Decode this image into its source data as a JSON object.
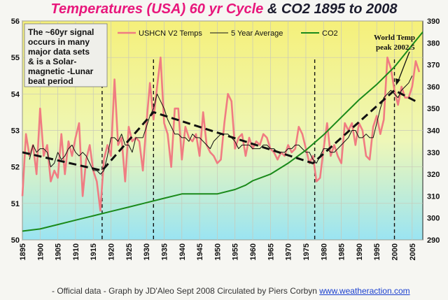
{
  "title": {
    "part1": "Temperatures (USA) 60 yr Cycle",
    "part2": "& CO2 1895 to 2008"
  },
  "annotation_box": "The ~60yr signal occurs in many major data sets & is a Solar-magnetic -Lunar beat period",
  "peak_label": {
    "line1": "World Temp",
    "line2": "peak 2002.5"
  },
  "footer": {
    "text": "- Official data - Graph by JD'Aleo Sept 2008  Circulated by Piers Corbyn",
    "link": "www.weatheraction.com"
  },
  "colors": {
    "ushcn": "#f07c82",
    "average": "#111111",
    "co2": "#1a8a1a",
    "trend": "#111111",
    "bg_top": "#f5f07a",
    "bg_bottom": "#9ae4f2"
  },
  "chart_data": {
    "type": "line",
    "xlim": [
      1895,
      2008
    ],
    "ylim_left": [
      50,
      56
    ],
    "ylim_right": [
      290,
      390
    ],
    "x_ticks": [
      1895,
      1900,
      1905,
      1910,
      1915,
      1920,
      1925,
      1930,
      1935,
      1940,
      1945,
      1950,
      1955,
      1960,
      1965,
      1970,
      1975,
      1980,
      1985,
      1990,
      1995,
      2000,
      2005
    ],
    "y_left_ticks": [
      50,
      51,
      52,
      53,
      54,
      55,
      56
    ],
    "y_right_ticks": [
      290,
      300,
      310,
      320,
      330,
      340,
      350,
      360,
      370,
      380,
      390
    ],
    "grid": true,
    "legend_position": "top",
    "series": [
      {
        "name": "USHCN V2 Temps",
        "axis": "left",
        "x": [
          1895,
          1896,
          1897,
          1898,
          1899,
          1900,
          1901,
          1902,
          1903,
          1904,
          1905,
          1906,
          1907,
          1908,
          1909,
          1910,
          1911,
          1912,
          1913,
          1914,
          1915,
          1916,
          1917,
          1918,
          1919,
          1920,
          1921,
          1922,
          1923,
          1924,
          1925,
          1926,
          1927,
          1928,
          1929,
          1930,
          1931,
          1932,
          1933,
          1934,
          1935,
          1936,
          1937,
          1938,
          1939,
          1940,
          1941,
          1942,
          1943,
          1944,
          1945,
          1946,
          1947,
          1948,
          1949,
          1950,
          1951,
          1952,
          1953,
          1954,
          1955,
          1956,
          1957,
          1958,
          1959,
          1960,
          1961,
          1962,
          1963,
          1964,
          1965,
          1966,
          1967,
          1968,
          1969,
          1970,
          1971,
          1972,
          1973,
          1974,
          1975,
          1976,
          1977,
          1978,
          1979,
          1980,
          1981,
          1982,
          1983,
          1984,
          1985,
          1986,
          1987,
          1988,
          1989,
          1990,
          1991,
          1992,
          1993,
          1994,
          1995,
          1996,
          1997,
          1998,
          1999,
          2000,
          2001,
          2002,
          2003,
          2004,
          2005,
          2006,
          2007
        ],
        "values": [
          51.2,
          52.9,
          52.3,
          52.6,
          51.8,
          53.6,
          52.3,
          52.6,
          51.6,
          51.9,
          51.7,
          52.9,
          51.8,
          52.7,
          52.3,
          52.8,
          53.2,
          51.2,
          52.2,
          52.6,
          51.9,
          51.6,
          50.8,
          52.2,
          52.6,
          52.3,
          54.4,
          52.6,
          52.8,
          51.6,
          53.1,
          52.7,
          52.8,
          52.7,
          51.9,
          53.2,
          54.3,
          53.3,
          54.2,
          55.0,
          53.2,
          52.9,
          52.0,
          53.6,
          53.6,
          52.2,
          53.1,
          52.8,
          52.7,
          52.9,
          52.3,
          53.5,
          52.6,
          52.4,
          52.3,
          52.1,
          52.2,
          53.2,
          54.0,
          53.8,
          52.5,
          52.8,
          52.9,
          52.3,
          52.8,
          52.5,
          52.7,
          52.6,
          52.9,
          52.8,
          52.5,
          52.4,
          52.2,
          52.4,
          52.3,
          52.6,
          52.4,
          52.5,
          53.1,
          52.9,
          52.5,
          52.1,
          52.3,
          51.6,
          51.7,
          52.5,
          53.2,
          52.3,
          52.6,
          52.3,
          52.1,
          53.2,
          53.0,
          53.2,
          52.6,
          53.2,
          53.0,
          52.3,
          52.2,
          53.1,
          53.4,
          52.9,
          53.3,
          55.0,
          54.7,
          54.1,
          53.7,
          54.2,
          53.9,
          53.9,
          54.2,
          54.9,
          54.6
        ]
      },
      {
        "name": "5 Year Average",
        "axis": "left",
        "x": [
          1897,
          1898,
          1899,
          1900,
          1901,
          1902,
          1903,
          1904,
          1905,
          1906,
          1907,
          1908,
          1909,
          1910,
          1911,
          1912,
          1913,
          1914,
          1915,
          1916,
          1917,
          1918,
          1919,
          1920,
          1921,
          1922,
          1923,
          1924,
          1925,
          1926,
          1927,
          1928,
          1929,
          1930,
          1931,
          1932,
          1933,
          1934,
          1935,
          1936,
          1937,
          1938,
          1939,
          1940,
          1941,
          1942,
          1943,
          1944,
          1945,
          1946,
          1947,
          1948,
          1949,
          1950,
          1951,
          1952,
          1953,
          1954,
          1955,
          1956,
          1957,
          1958,
          1959,
          1960,
          1961,
          1962,
          1963,
          1964,
          1965,
          1966,
          1967,
          1968,
          1969,
          1970,
          1971,
          1972,
          1973,
          1974,
          1975,
          1976,
          1977,
          1978,
          1979,
          1980,
          1981,
          1982,
          1983,
          1984,
          1985,
          1986,
          1987,
          1988,
          1989,
          1990,
          1991,
          1992,
          1993,
          1994,
          1995,
          1996,
          1997,
          1998,
          1999,
          2000,
          2001,
          2002,
          2003,
          2004,
          2005
        ],
        "values": [
          52.2,
          52.6,
          52.4,
          52.5,
          52.5,
          52.4,
          52.0,
          52.1,
          52.4,
          52.2,
          52.3,
          52.5,
          52.6,
          52.4,
          52.3,
          52.4,
          52.3,
          52.1,
          51.9,
          51.9,
          51.8,
          51.9,
          52.3,
          52.8,
          52.8,
          52.7,
          52.9,
          52.6,
          52.6,
          52.4,
          52.8,
          52.8,
          52.8,
          53.1,
          53.4,
          53.6,
          54.0,
          53.8,
          53.6,
          53.3,
          53.1,
          52.9,
          52.9,
          52.8,
          52.8,
          52.7,
          52.9,
          52.8,
          52.8,
          52.7,
          52.6,
          52.5,
          52.7,
          52.8,
          52.9,
          52.9,
          52.9,
          52.8,
          52.7,
          52.5,
          52.6,
          52.6,
          52.6,
          52.5,
          52.5,
          52.5,
          52.6,
          52.6,
          52.5,
          52.5,
          52.4,
          52.4,
          52.4,
          52.5,
          52.5,
          52.6,
          52.6,
          52.5,
          52.4,
          52.4,
          52.2,
          52.1,
          52.3,
          52.5,
          52.5,
          52.4,
          52.4,
          52.5,
          52.6,
          52.7,
          52.8,
          53.0,
          53.0,
          52.8,
          52.8,
          52.9,
          52.8,
          52.8,
          53.2,
          53.6,
          53.9,
          54.0,
          54.1,
          54.0,
          53.9,
          54.1,
          54.2,
          54.3,
          54.5
        ]
      },
      {
        "name": "CO2",
        "axis": "right",
        "x": [
          1895,
          1900,
          1905,
          1910,
          1915,
          1920,
          1925,
          1930,
          1935,
          1940,
          1945,
          1950,
          1955,
          1958,
          1960,
          1965,
          1970,
          1975,
          1980,
          1985,
          1990,
          1995,
          2000,
          2005,
          2008
        ],
        "values": [
          294,
          295,
          297,
          299,
          301,
          303,
          305,
          307,
          309,
          311,
          311,
          311,
          313,
          315,
          317,
          320,
          325,
          331,
          338,
          346,
          354,
          361,
          369,
          379,
          385
        ]
      },
      {
        "name": "Trend",
        "axis": "left",
        "x": [
          1895,
          1917.5,
          1932,
          1977,
          2000,
          2006
        ],
        "values": [
          52.4,
          51.9,
          53.5,
          52.1,
          54.1,
          53.8
        ]
      }
    ],
    "vlines": [
      1917.5,
      1932,
      1977.5,
      2000
    ]
  }
}
